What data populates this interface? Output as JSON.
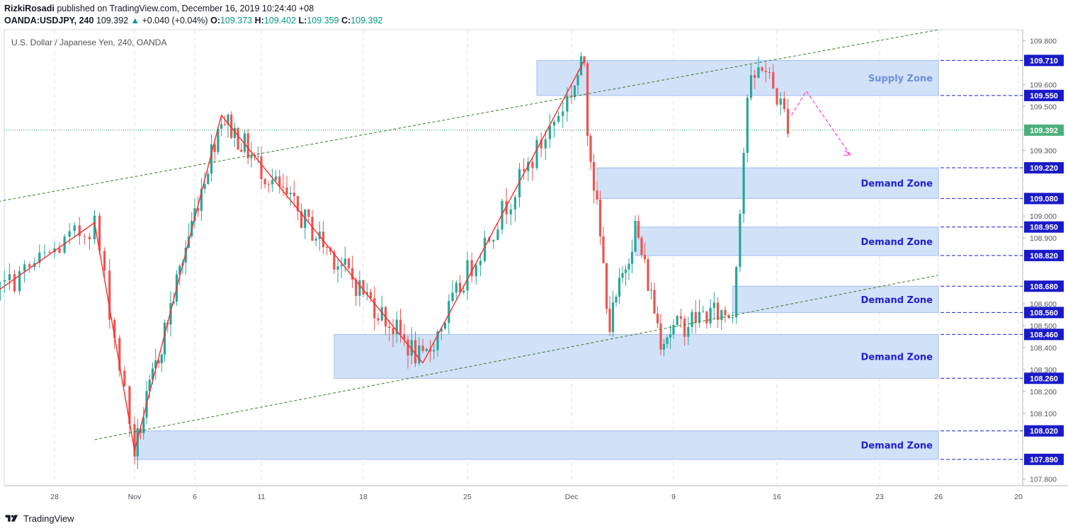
{
  "header": {
    "author": "RizkiRosadi",
    "published": "published on TradingView.com, December 16, 2019 10:24:40 +08",
    "symbol": "OANDA:USDJPY, 240",
    "last": "109.392",
    "change": "+0.040 (+0.04%)",
    "o_label": "O:",
    "o_value": "109.373",
    "h_label": "H:",
    "h_value": "109.402",
    "l_label": "L:",
    "l_value": "109.359",
    "c_label": "C:",
    "c_value": "109.392"
  },
  "chart_data": {
    "type": "candlestick",
    "title": "U.S. Dollar / Japanese Yen, 240, OANDA",
    "ylim": [
      107.77,
      109.85
    ],
    "y_ticks": [
      "109.800",
      "109.600",
      "109.500",
      "109.300",
      "109.000",
      "108.900",
      "108.600",
      "108.500",
      "108.400",
      "108.300",
      "108.200",
      "108.100",
      "107.800"
    ],
    "x_ticks": [
      "28",
      "Nov",
      "6",
      "11",
      "18",
      "25",
      "Dec",
      "9",
      "16",
      "23",
      "26",
      "20"
    ],
    "last_price": {
      "value": 109.392,
      "label": "109.392"
    },
    "zones": [
      {
        "label": "Supply Zone",
        "low": 109.55,
        "high": 109.71,
        "start": "Nov 29",
        "end": "Dec 26",
        "type": "supply"
      },
      {
        "label": "Demand Zone",
        "low": 109.08,
        "high": 109.22,
        "start": "Dec 3",
        "end": "Dec 26",
        "type": "demand"
      },
      {
        "label": "Demand Zone",
        "low": 108.82,
        "high": 108.95,
        "start": "Dec 6",
        "end": "Dec 26",
        "type": "demand"
      },
      {
        "label": "Demand Zone",
        "low": 108.56,
        "high": 108.68,
        "start": "Dec 13",
        "end": "Dec 26",
        "type": "demand"
      },
      {
        "label": "Demand Zone",
        "low": 108.26,
        "high": 108.46,
        "start": "Nov 16",
        "end": "Dec 26",
        "type": "demand"
      },
      {
        "label": "Demand Zone",
        "low": 107.89,
        "high": 108.02,
        "start": "Nov 1",
        "end": "Dec 26",
        "type": "demand"
      }
    ],
    "level_labels": [
      "109.710",
      "109.550",
      "109.220",
      "109.080",
      "108.950",
      "108.820",
      "108.680",
      "108.560",
      "108.460",
      "108.260",
      "108.020",
      "107.890"
    ],
    "zigzag": [
      {
        "x": "Oct 23",
        "y": 108.52
      },
      {
        "x": "Oct 30",
        "y": 108.97
      },
      {
        "x": "Nov 1",
        "y": 107.93
      },
      {
        "x": "Nov 8",
        "y": 109.46
      },
      {
        "x": "Nov 22",
        "y": 108.33
      },
      {
        "x": "Dec 2",
        "y": 109.71
      }
    ],
    "channel_upper": [
      {
        "x": "Oct 23",
        "y": 109.03
      },
      {
        "x": "Dec 26",
        "y": 109.85
      }
    ],
    "channel_lower": [
      {
        "x": "Oct 30",
        "y": 107.98
      },
      {
        "x": "Dec 26",
        "y": 108.73
      }
    ],
    "projection": [
      {
        "x": "Dec 17",
        "y": 109.46
      },
      {
        "x": "Dec 18",
        "y": 109.57
      },
      {
        "x": "Dec 21",
        "y": 109.28
      }
    ]
  },
  "footer": {
    "brand": "TradingView"
  },
  "colors": {
    "bull": "#26a69a",
    "bear": "#ef5350",
    "zone_fill": "#cfdff8",
    "zone_border": "#9fbdee",
    "zone_text": "#1f1fcf",
    "supply_text": "#6f8fd8",
    "level_line": "#1f1fcf",
    "level_box": "#1a1ac9",
    "zigzag": "#ff2a2a",
    "channel": "#3b7a2a",
    "projection": "#ff3dcb",
    "last_box": "#4caf7a",
    "last_line": "#1e9c56"
  }
}
